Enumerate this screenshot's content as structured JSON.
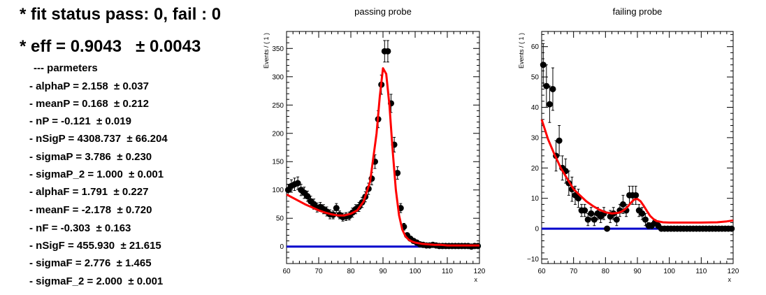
{
  "summary": {
    "fit_status": "* fit status pass: 0, fail : 0",
    "eff": "* eff = 0.9043   ± 0.0043",
    "params_header": "--- parmeters",
    "params": [
      "- alphaP = 2.158  ± 0.037",
      "- meanP = 0.168  ± 0.212",
      "- nP = -0.121  ± 0.019",
      "- nSigP = 4308.737  ± 66.204",
      "- sigmaP = 3.786  ± 0.230",
      "- sigmaP_2 = 1.000  ± 0.001",
      "- alphaF = 1.791  ± 0.227",
      "- meanF = -2.178  ± 0.720",
      "- nF = -0.303  ± 0.163",
      "- nSigF = 455.930  ± 21.615",
      "- sigmaF = 2.776  ± 1.465",
      "- sigmaF_2 = 2.000  ± 0.001"
    ]
  },
  "chart_data": [
    {
      "type": "scatter",
      "title": "passing probe",
      "xlabel": "x",
      "ylabel": "Events / ( 1 )",
      "xlim": [
        60,
        120
      ],
      "ylim": [
        -30,
        380
      ],
      "xticks": [
        60,
        70,
        80,
        90,
        100,
        110,
        120
      ],
      "xticklabels": [
        "60",
        "70",
        "80",
        "90",
        "100",
        "110",
        "120"
      ],
      "yticks": [
        0,
        50,
        100,
        150,
        200,
        250,
        300,
        350
      ],
      "yticklabels": [
        "0",
        "50",
        "100",
        "150",
        "200",
        "250",
        "300",
        "350"
      ],
      "grid": false,
      "colors": {
        "data": "#000000",
        "fit": "#ff0000",
        "background": "#0000cc"
      },
      "series": [
        {
          "x": [
            60.5,
            61.5,
            62.5,
            63.5,
            64.5,
            65.5,
            66.5,
            67.5,
            68.5,
            69.5,
            70.5,
            71.5,
            72.5,
            73.5,
            74.5,
            75.5,
            76.5,
            77.5,
            78.5,
            79.5,
            80.5,
            81.5,
            82.5,
            83.5,
            84.5,
            85.5,
            86.5,
            87.5,
            88.5,
            89.5,
            90.5,
            91.5,
            92.5,
            93.5,
            94.5,
            95.5,
            96.5,
            97.5,
            98.5,
            99.5,
            100.5,
            101.5,
            102.5,
            103.5,
            104.5,
            105.5,
            106.5,
            107.5,
            108.5,
            109.5,
            110.5,
            111.5,
            112.5,
            113.5,
            114.5,
            115.5,
            116.5,
            117.5,
            118.5,
            119.5
          ],
          "y": [
            100,
            107,
            110,
            112,
            100,
            95,
            89,
            80,
            75,
            69,
            70,
            66,
            62,
            57,
            56,
            68,
            56,
            52,
            53,
            54,
            60,
            66,
            70,
            78,
            88,
            102,
            120,
            150,
            225,
            286,
            345,
            345,
            253,
            180,
            130,
            68,
            35,
            20,
            14,
            10,
            7,
            4,
            3,
            2,
            2,
            3,
            2,
            1,
            1,
            1,
            1,
            1,
            1,
            1,
            1,
            1,
            1,
            0,
            1,
            1
          ],
          "yerr": [
            10,
            11,
            11,
            11,
            10,
            10,
            9,
            9,
            9,
            8,
            8,
            8,
            8,
            8,
            7,
            8,
            7,
            7,
            7,
            7,
            8,
            8,
            8,
            9,
            9,
            10,
            11,
            12,
            15,
            17,
            19,
            19,
            16,
            13,
            11,
            8,
            6,
            4,
            4,
            3,
            3,
            2,
            2,
            1,
            1,
            2,
            1,
            1,
            1,
            1,
            1,
            1,
            1,
            1,
            1,
            1,
            1,
            0,
            1,
            1
          ]
        },
        {
          "x": [
            60,
            62,
            64,
            66,
            68,
            70,
            72,
            74,
            76,
            78,
            80,
            82,
            84,
            86,
            88,
            89,
            90,
            91,
            92,
            93,
            94,
            95,
            96,
            97,
            98,
            99,
            100,
            102,
            104,
            106,
            108,
            110,
            112,
            114,
            116,
            118,
            120
          ],
          "y": [
            92,
            86,
            80,
            74,
            69,
            64,
            60,
            57,
            55,
            55,
            58,
            64,
            80,
            115,
            200,
            265,
            315,
            305,
            250,
            170,
            100,
            55,
            30,
            18,
            12,
            9,
            7,
            5,
            4,
            3,
            3,
            2,
            2,
            2,
            2,
            2,
            2
          ]
        },
        {
          "x": [
            60,
            120
          ],
          "y": [
            0,
            0
          ]
        }
      ]
    },
    {
      "type": "scatter",
      "title": "failing probe",
      "xlabel": "x",
      "ylabel": "Events / ( 1 )",
      "xlim": [
        60,
        120
      ],
      "ylim": [
        -11.5,
        65
      ],
      "xticks": [
        60,
        70,
        80,
        90,
        100,
        110,
        120
      ],
      "xticklabels": [
        "60",
        "70",
        "80",
        "90",
        "100",
        "110",
        "120"
      ],
      "yticks": [
        -10,
        0,
        10,
        20,
        30,
        40,
        50,
        60
      ],
      "yticklabels": [
        "−10",
        "0",
        "10",
        "20",
        "30",
        "40",
        "50",
        "60"
      ],
      "grid": false,
      "colors": {
        "data": "#000000",
        "fit": "#ff0000",
        "background": "#0000cc"
      },
      "series": [
        {
          "x": [
            60.5,
            61.5,
            62.5,
            63.5,
            64.5,
            65.5,
            66.5,
            67.5,
            68.5,
            69.5,
            70.5,
            71.5,
            72.5,
            73.5,
            74.5,
            75.5,
            76.5,
            77.5,
            78.5,
            79.5,
            80.5,
            81.5,
            82.5,
            83.5,
            84.5,
            85.5,
            86.5,
            87.5,
            88.5,
            89.5,
            90.5,
            91.5,
            92.5,
            93.5,
            94.5,
            95.5,
            96.5,
            97.5,
            98.5,
            99.5,
            100.5,
            101.5,
            102.5,
            103.5,
            104.5,
            105.5,
            106.5,
            107.5,
            108.5,
            109.5,
            110.5,
            111.5,
            112.5,
            113.5,
            114.5,
            115.5,
            116.5,
            117.5,
            118.5,
            119.5
          ],
          "y": [
            54,
            47,
            41,
            46,
            24,
            29,
            20,
            19,
            15,
            13,
            11,
            10,
            6,
            6,
            3,
            5,
            3,
            5,
            4,
            5,
            0,
            4,
            5,
            3,
            6,
            8,
            6,
            11,
            11,
            11,
            6,
            5,
            3,
            1,
            1,
            2,
            1,
            0,
            0,
            0,
            0,
            0,
            0,
            0,
            0,
            0,
            0,
            0,
            0,
            0,
            0,
            0,
            0,
            0,
            0,
            0,
            0,
            0,
            0,
            0
          ],
          "yerr": [
            7,
            7,
            6,
            7,
            5,
            5,
            4,
            4,
            4,
            4,
            3,
            3,
            2,
            2,
            2,
            2,
            2,
            2,
            2,
            2,
            0,
            2,
            2,
            2,
            2,
            3,
            2,
            3,
            3,
            3,
            2,
            2,
            2,
            1,
            1,
            1,
            1,
            0,
            0,
            0,
            0,
            0,
            0,
            0,
            0,
            0,
            0,
            0,
            0,
            0,
            0,
            0,
            0,
            0,
            0,
            0,
            0,
            0,
            0,
            0
          ]
        },
        {
          "x": [
            60,
            62,
            64,
            66,
            68,
            70,
            72,
            74,
            76,
            78,
            80,
            82,
            84,
            85,
            86,
            87,
            88,
            89,
            90,
            91,
            92,
            93,
            94,
            95,
            96,
            98,
            100,
            105,
            110,
            115,
            118,
            120
          ],
          "y": [
            36,
            29.5,
            24.5,
            20,
            16.5,
            13,
            11,
            9,
            7.5,
            6.3,
            5.4,
            5,
            5.2,
            5.6,
            6.3,
            7.3,
            8.6,
            9.6,
            9.8,
            9,
            7.5,
            5.8,
            4.2,
            3.2,
            2.5,
            2.1,
            2,
            2,
            2,
            2.1,
            2.4,
            2.7
          ]
        },
        {
          "x": [
            60,
            120
          ],
          "y": [
            0,
            0
          ]
        }
      ]
    }
  ]
}
